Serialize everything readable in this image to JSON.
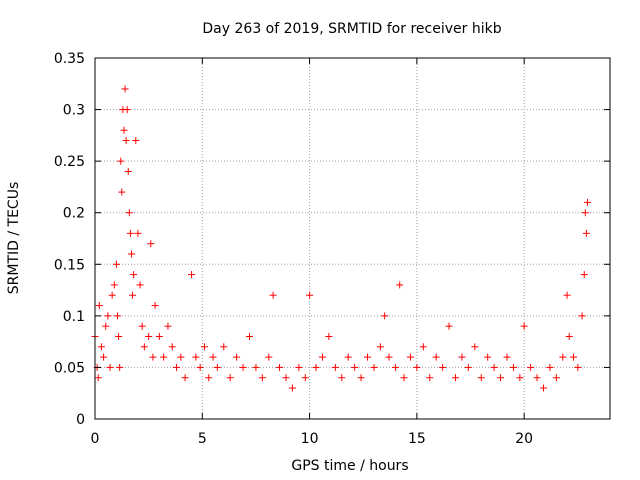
{
  "chart_data": {
    "type": "scatter",
    "title": "Day 263 of 2019, SRMTID for receiver hikb",
    "xlabel": "GPS time / hours",
    "ylabel": "SRMTID / TECUs",
    "xlim": [
      0,
      24
    ],
    "ylim": [
      0,
      0.35
    ],
    "grid": true,
    "marker": "+",
    "series_color": "#ff0000",
    "x_ticks": [
      {
        "value": 0,
        "label": "0"
      },
      {
        "value": 5,
        "label": "5"
      },
      {
        "value": 10,
        "label": "10"
      },
      {
        "value": 15,
        "label": "15"
      },
      {
        "value": 20,
        "label": "20"
      }
    ],
    "y_ticks": [
      {
        "value": 0,
        "label": "0"
      },
      {
        "value": 0.05,
        "label": "0.05"
      },
      {
        "value": 0.1,
        "label": "0.1"
      },
      {
        "value": 0.15,
        "label": "0.15"
      },
      {
        "value": 0.2,
        "label": "0.2"
      },
      {
        "value": 0.25,
        "label": "0.25"
      },
      {
        "value": 0.3,
        "label": "0.3"
      },
      {
        "value": 0.35,
        "label": "0.35"
      }
    ],
    "series": [
      {
        "name": "SRMTID",
        "points": [
          [
            0.0,
            0.08
          ],
          [
            0.1,
            0.05
          ],
          [
            0.15,
            0.04
          ],
          [
            0.2,
            0.11
          ],
          [
            0.3,
            0.07
          ],
          [
            0.4,
            0.06
          ],
          [
            0.5,
            0.09
          ],
          [
            0.6,
            0.1
          ],
          [
            0.7,
            0.05
          ],
          [
            0.8,
            0.12
          ],
          [
            0.9,
            0.13
          ],
          [
            1.0,
            0.15
          ],
          [
            1.05,
            0.1
          ],
          [
            1.1,
            0.08
          ],
          [
            1.15,
            0.05
          ],
          [
            1.2,
            0.25
          ],
          [
            1.25,
            0.22
          ],
          [
            1.3,
            0.3
          ],
          [
            1.35,
            0.28
          ],
          [
            1.4,
            0.32
          ],
          [
            1.45,
            0.27
          ],
          [
            1.5,
            0.3
          ],
          [
            1.55,
            0.24
          ],
          [
            1.6,
            0.2
          ],
          [
            1.65,
            0.18
          ],
          [
            1.7,
            0.16
          ],
          [
            1.75,
            0.12
          ],
          [
            1.8,
            0.14
          ],
          [
            1.9,
            0.27
          ],
          [
            2.0,
            0.18
          ],
          [
            2.1,
            0.13
          ],
          [
            2.2,
            0.09
          ],
          [
            2.3,
            0.07
          ],
          [
            2.5,
            0.08
          ],
          [
            2.6,
            0.17
          ],
          [
            2.7,
            0.06
          ],
          [
            2.8,
            0.11
          ],
          [
            3.0,
            0.08
          ],
          [
            3.2,
            0.06
          ],
          [
            3.4,
            0.09
          ],
          [
            3.6,
            0.07
          ],
          [
            3.8,
            0.05
          ],
          [
            4.0,
            0.06
          ],
          [
            4.2,
            0.04
          ],
          [
            4.5,
            0.14
          ],
          [
            4.7,
            0.06
          ],
          [
            4.9,
            0.05
          ],
          [
            5.1,
            0.07
          ],
          [
            5.3,
            0.04
          ],
          [
            5.5,
            0.06
          ],
          [
            5.7,
            0.05
          ],
          [
            6.0,
            0.07
          ],
          [
            6.3,
            0.04
          ],
          [
            6.6,
            0.06
          ],
          [
            6.9,
            0.05
          ],
          [
            7.2,
            0.08
          ],
          [
            7.5,
            0.05
          ],
          [
            7.8,
            0.04
          ],
          [
            8.1,
            0.06
          ],
          [
            8.3,
            0.12
          ],
          [
            8.6,
            0.05
          ],
          [
            8.9,
            0.04
          ],
          [
            9.2,
            0.03
          ],
          [
            9.5,
            0.05
          ],
          [
            9.8,
            0.04
          ],
          [
            10.0,
            0.12
          ],
          [
            10.3,
            0.05
          ],
          [
            10.6,
            0.06
          ],
          [
            10.9,
            0.08
          ],
          [
            11.2,
            0.05
          ],
          [
            11.5,
            0.04
          ],
          [
            11.8,
            0.06
          ],
          [
            12.1,
            0.05
          ],
          [
            12.4,
            0.04
          ],
          [
            12.7,
            0.06
          ],
          [
            13.0,
            0.05
          ],
          [
            13.3,
            0.07
          ],
          [
            13.5,
            0.1
          ],
          [
            13.7,
            0.06
          ],
          [
            14.0,
            0.05
          ],
          [
            14.2,
            0.13
          ],
          [
            14.4,
            0.04
          ],
          [
            14.7,
            0.06
          ],
          [
            15.0,
            0.05
          ],
          [
            15.3,
            0.07
          ],
          [
            15.6,
            0.04
          ],
          [
            15.9,
            0.06
          ],
          [
            16.2,
            0.05
          ],
          [
            16.5,
            0.09
          ],
          [
            16.8,
            0.04
          ],
          [
            17.1,
            0.06
          ],
          [
            17.4,
            0.05
          ],
          [
            17.7,
            0.07
          ],
          [
            18.0,
            0.04
          ],
          [
            18.3,
            0.06
          ],
          [
            18.6,
            0.05
          ],
          [
            18.9,
            0.04
          ],
          [
            19.2,
            0.06
          ],
          [
            19.5,
            0.05
          ],
          [
            19.8,
            0.04
          ],
          [
            20.0,
            0.09
          ],
          [
            20.3,
            0.05
          ],
          [
            20.6,
            0.04
          ],
          [
            20.9,
            0.03
          ],
          [
            21.2,
            0.05
          ],
          [
            21.5,
            0.04
          ],
          [
            21.8,
            0.06
          ],
          [
            22.0,
            0.12
          ],
          [
            22.1,
            0.08
          ],
          [
            22.3,
            0.06
          ],
          [
            22.5,
            0.05
          ],
          [
            22.7,
            0.1
          ],
          [
            22.8,
            0.14
          ],
          [
            22.85,
            0.2
          ],
          [
            22.9,
            0.18
          ],
          [
            22.95,
            0.21
          ]
        ]
      }
    ]
  }
}
